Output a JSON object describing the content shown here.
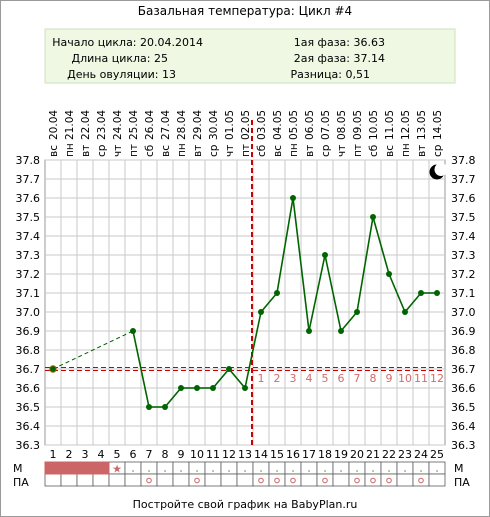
{
  "title": "Базальная температура: Цикл #4",
  "info": {
    "cycle_start": "Начало цикла: 20.04.2014",
    "cycle_length": "Длина цикла: 25",
    "ovulation_day": "День овуляции: 13",
    "phase1": "1ая фаза: 36.63",
    "phase2": "2ая фаза: 37.14",
    "difference": "Разница: 0,51"
  },
  "footer": "Постройте свой график на BabyPlan.ru",
  "row_labels": {
    "m": "М",
    "pa": "ПА"
  },
  "colors": {
    "line": "#006400",
    "coverline": "#cc0000",
    "ovulation": "#cc0000",
    "menses": "#cc6666",
    "info_bg": "#eef8e3",
    "grid": "#c8c8c8"
  },
  "chart_data": {
    "type": "line",
    "days": [
      1,
      2,
      3,
      4,
      5,
      6,
      7,
      8,
      9,
      10,
      11,
      12,
      13,
      14,
      15,
      16,
      17,
      18,
      19,
      20,
      21,
      22,
      23,
      24,
      25
    ],
    "dates": [
      "20.04",
      "21.04",
      "22.04",
      "23.04",
      "24.04",
      "25.04",
      "26.04",
      "27.04",
      "28.04",
      "29.04",
      "30.04",
      "01.05",
      "02.05",
      "03.05",
      "04.05",
      "05.05",
      "06.05",
      "07.05",
      "08.05",
      "09.05",
      "10.05",
      "11.05",
      "12.05",
      "13.05",
      "14.05"
    ],
    "weekdays": [
      "вс",
      "пн",
      "вт",
      "ср",
      "чт",
      "пт",
      "сб",
      "вс",
      "пн",
      "вт",
      "ср",
      "чт",
      "пт",
      "сб",
      "вс",
      "пн",
      "вт",
      "ср",
      "чт",
      "пт",
      "сб",
      "вс",
      "пн",
      "вт",
      "ср"
    ],
    "temperatures": [
      36.7,
      null,
      null,
      null,
      null,
      36.9,
      36.5,
      36.5,
      36.6,
      36.6,
      36.6,
      36.7,
      36.6,
      37.0,
      37.1,
      37.6,
      36.9,
      37.3,
      36.9,
      37.0,
      37.5,
      37.2,
      37.0,
      37.1,
      37.1
    ],
    "yticks": [
      "36.3",
      "36.4",
      "36.5",
      "36.6",
      "36.7",
      "36.8",
      "36.9",
      "37.0",
      "37.1",
      "37.2",
      "37.3",
      "37.4",
      "37.5",
      "37.6",
      "37.7",
      "37.8"
    ],
    "ylim": [
      36.3,
      37.8
    ],
    "coverline": 36.7,
    "ovulation_day": 13,
    "luteal_labels": [
      "1",
      "2",
      "3",
      "4",
      "5",
      "6",
      "7",
      "8",
      "9",
      "10",
      "11",
      "12"
    ],
    "menses_days": [
      1,
      2,
      3,
      4
    ],
    "menses_star_day": 5,
    "pa_days": [
      7,
      10,
      14,
      15,
      16,
      18,
      20,
      21,
      22,
      24
    ],
    "grid": true
  }
}
